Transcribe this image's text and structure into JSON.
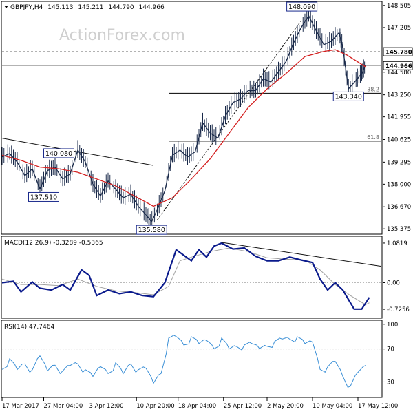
{
  "chart_data": {
    "type": "line",
    "symbol": "GBPJPY",
    "timeframe": "H4",
    "ohlc": {
      "open": "145.113",
      "high": "145.211",
      "low": "144.790",
      "close": "144.966"
    },
    "watermark": "ActionForex.com",
    "price_panel": {
      "ylim": [
        135.1,
        148.7
      ],
      "y_ticks": [
        "148.505",
        "147.205",
        "145.880",
        "144.580",
        "143.250",
        "141.955",
        "140.625",
        "139.295",
        "138.000",
        "136.670",
        "135.375"
      ],
      "price_labels": [
        {
          "text": "145.780",
          "value": 145.78
        },
        {
          "text": "144.966",
          "value": 144.966
        }
      ],
      "annotations": [
        {
          "text": "148.090",
          "value": 148.09,
          "x": 0.792
        },
        {
          "text": "140.080",
          "value": 140.08,
          "x": 0.15
        },
        {
          "text": "137.510",
          "value": 137.51,
          "x": 0.11
        },
        {
          "text": "135.580",
          "value": 135.58,
          "x": 0.395
        },
        {
          "text": "143.340",
          "value": 143.34,
          "x": 0.915
        }
      ],
      "fib_levels": [
        {
          "label": "38.2",
          "value": 143.34
        },
        {
          "label": "61.8",
          "value": 140.53
        }
      ],
      "dashed_level": 145.78,
      "last_price": 144.966,
      "price_series": [
        [
          0.0,
          139.6
        ],
        [
          0.02,
          139.8
        ],
        [
          0.04,
          139.3
        ],
        [
          0.06,
          138.5
        ],
        [
          0.08,
          138.9
        ],
        [
          0.1,
          137.7
        ],
        [
          0.12,
          138.8
        ],
        [
          0.14,
          139.0
        ],
        [
          0.16,
          138.3
        ],
        [
          0.18,
          138.6
        ],
        [
          0.2,
          140.0
        ],
        [
          0.22,
          139.3
        ],
        [
          0.24,
          138.0
        ],
        [
          0.26,
          137.3
        ],
        [
          0.28,
          138.2
        ],
        [
          0.3,
          137.7
        ],
        [
          0.32,
          137.2
        ],
        [
          0.34,
          137.4
        ],
        [
          0.36,
          136.7
        ],
        [
          0.38,
          136.2
        ],
        [
          0.395,
          135.8
        ],
        [
          0.41,
          136.5
        ],
        [
          0.43,
          137.6
        ],
        [
          0.45,
          139.7
        ],
        [
          0.47,
          140.0
        ],
        [
          0.49,
          139.6
        ],
        [
          0.51,
          139.9
        ],
        [
          0.53,
          141.6
        ],
        [
          0.55,
          141.0
        ],
        [
          0.57,
          140.7
        ],
        [
          0.59,
          142.0
        ],
        [
          0.61,
          142.8
        ],
        [
          0.63,
          143.0
        ],
        [
          0.65,
          143.5
        ],
        [
          0.67,
          143.5
        ],
        [
          0.69,
          144.2
        ],
        [
          0.71,
          144.0
        ],
        [
          0.73,
          144.6
        ],
        [
          0.75,
          145.2
        ],
        [
          0.77,
          146.3
        ],
        [
          0.79,
          147.2
        ],
        [
          0.81,
          147.9
        ],
        [
          0.83,
          147.0
        ],
        [
          0.85,
          146.2
        ],
        [
          0.87,
          146.4
        ],
        [
          0.89,
          146.9
        ],
        [
          0.9,
          146.0
        ],
        [
          0.915,
          143.6
        ],
        [
          0.935,
          144.1
        ],
        [
          0.95,
          144.5
        ],
        [
          0.96,
          144.97
        ]
      ],
      "ma_series": [
        [
          0.0,
          139.7
        ],
        [
          0.05,
          139.4
        ],
        [
          0.1,
          139.0
        ],
        [
          0.15,
          138.9
        ],
        [
          0.2,
          138.7
        ],
        [
          0.25,
          138.3
        ],
        [
          0.3,
          137.9
        ],
        [
          0.35,
          137.3
        ],
        [
          0.4,
          136.7
        ],
        [
          0.45,
          137.2
        ],
        [
          0.5,
          138.3
        ],
        [
          0.55,
          139.5
        ],
        [
          0.6,
          141.0
        ],
        [
          0.65,
          142.5
        ],
        [
          0.7,
          143.6
        ],
        [
          0.75,
          144.5
        ],
        [
          0.8,
          145.5
        ],
        [
          0.85,
          145.8
        ],
        [
          0.88,
          145.9
        ],
        [
          0.91,
          145.6
        ],
        [
          0.96,
          144.9
        ]
      ],
      "trendlines": [
        {
          "from": [
            0.0,
            140.7
          ],
          "to": [
            0.4,
            139.1
          ],
          "style": "solid"
        },
        {
          "from": [
            0.41,
            135.9
          ],
          "to": [
            0.79,
            147.6
          ],
          "style": "dashed"
        }
      ]
    },
    "macd_panel": {
      "label": "MACD(12,26,9) -0.3289 -0.5365",
      "ylim": [
        -0.95,
        1.25
      ],
      "y_ticks": [
        "1.0819",
        "0.00",
        "-0.7256"
      ],
      "macd_series": [
        [
          0.0,
          0.0
        ],
        [
          0.03,
          0.04
        ],
        [
          0.05,
          -0.25
        ],
        [
          0.08,
          0.02
        ],
        [
          0.1,
          -0.15
        ],
        [
          0.13,
          -0.2
        ],
        [
          0.16,
          -0.05
        ],
        [
          0.18,
          -0.2
        ],
        [
          0.21,
          0.35
        ],
        [
          0.23,
          0.2
        ],
        [
          0.25,
          -0.35
        ],
        [
          0.28,
          -0.2
        ],
        [
          0.31,
          -0.3
        ],
        [
          0.34,
          -0.25
        ],
        [
          0.37,
          -0.35
        ],
        [
          0.4,
          -0.38
        ],
        [
          0.43,
          0.0
        ],
        [
          0.46,
          0.9
        ],
        [
          0.48,
          0.75
        ],
        [
          0.5,
          0.6
        ],
        [
          0.52,
          0.9
        ],
        [
          0.54,
          0.7
        ],
        [
          0.56,
          1.0
        ],
        [
          0.58,
          1.08
        ],
        [
          0.61,
          0.92
        ],
        [
          0.64,
          0.95
        ],
        [
          0.67,
          0.72
        ],
        [
          0.7,
          0.6
        ],
        [
          0.73,
          0.6
        ],
        [
          0.76,
          0.7
        ],
        [
          0.79,
          0.62
        ],
        [
          0.82,
          0.55
        ],
        [
          0.84,
          0.1
        ],
        [
          0.86,
          -0.2
        ],
        [
          0.88,
          0.0
        ],
        [
          0.9,
          -0.2
        ],
        [
          0.93,
          -0.72
        ],
        [
          0.95,
          -0.72
        ],
        [
          0.97,
          -0.4
        ]
      ],
      "signal_series": [
        [
          0.0,
          0.1
        ],
        [
          0.05,
          -0.05
        ],
        [
          0.1,
          -0.05
        ],
        [
          0.15,
          -0.08
        ],
        [
          0.2,
          0.1
        ],
        [
          0.25,
          -0.1
        ],
        [
          0.3,
          -0.22
        ],
        [
          0.35,
          -0.27
        ],
        [
          0.4,
          -0.33
        ],
        [
          0.44,
          -0.1
        ],
        [
          0.47,
          0.6
        ],
        [
          0.5,
          0.7
        ],
        [
          0.55,
          0.85
        ],
        [
          0.6,
          0.95
        ],
        [
          0.65,
          0.85
        ],
        [
          0.7,
          0.68
        ],
        [
          0.75,
          0.64
        ],
        [
          0.8,
          0.62
        ],
        [
          0.84,
          0.35
        ],
        [
          0.88,
          -0.05
        ],
        [
          0.92,
          -0.35
        ],
        [
          0.96,
          -0.6
        ],
        [
          0.97,
          -0.55
        ]
      ],
      "trendline": {
        "from": [
          0.58,
          1.1
        ],
        "to": [
          1.0,
          0.45
        ]
      }
    },
    "rsi_panel": {
      "label": "RSI(14) 47.7464",
      "ylim": [
        12,
        104
      ],
      "y_ticks": [
        "100",
        "70",
        "30"
      ],
      "levels": [
        70,
        30
      ],
      "rsi_series": [
        [
          0.0,
          50
        ],
        [
          0.02,
          55
        ],
        [
          0.04,
          45
        ],
        [
          0.06,
          55
        ],
        [
          0.08,
          40
        ],
        [
          0.1,
          60
        ],
        [
          0.12,
          45
        ],
        [
          0.14,
          55
        ],
        [
          0.16,
          40
        ],
        [
          0.18,
          50
        ],
        [
          0.2,
          55
        ],
        [
          0.22,
          40
        ],
        [
          0.24,
          35
        ],
        [
          0.26,
          50
        ],
        [
          0.28,
          45
        ],
        [
          0.3,
          50
        ],
        [
          0.32,
          40
        ],
        [
          0.34,
          55
        ],
        [
          0.36,
          40
        ],
        [
          0.38,
          45
        ],
        [
          0.4,
          30
        ],
        [
          0.42,
          45
        ],
        [
          0.44,
          80
        ],
        [
          0.46,
          85
        ],
        [
          0.48,
          78
        ],
        [
          0.5,
          80
        ],
        [
          0.52,
          75
        ],
        [
          0.54,
          82
        ],
        [
          0.56,
          75
        ],
        [
          0.58,
          80
        ],
        [
          0.6,
          70
        ],
        [
          0.62,
          76
        ],
        [
          0.64,
          70
        ],
        [
          0.66,
          75
        ],
        [
          0.68,
          72
        ],
        [
          0.7,
          78
        ],
        [
          0.72,
          76
        ],
        [
          0.74,
          82
        ],
        [
          0.76,
          85
        ],
        [
          0.78,
          80
        ],
        [
          0.8,
          75
        ],
        [
          0.82,
          80
        ],
        [
          0.84,
          50
        ],
        [
          0.86,
          45
        ],
        [
          0.88,
          55
        ],
        [
          0.9,
          40
        ],
        [
          0.92,
          20
        ],
        [
          0.94,
          40
        ],
        [
          0.96,
          50
        ]
      ]
    },
    "x_ticks": [
      {
        "label": "17 Mar 2017",
        "x": 0.0
      },
      {
        "label": "27 Mar 04:00",
        "x": 0.11
      },
      {
        "label": "3 Apr 12:00",
        "x": 0.23
      },
      {
        "label": "10 Apr 20:00",
        "x": 0.355
      },
      {
        "label": "18 Apr 04:00",
        "x": 0.465
      },
      {
        "label": "25 Apr 12:00",
        "x": 0.585
      },
      {
        "label": "2 May 20:00",
        "x": 0.7
      },
      {
        "label": "10 May 04:00",
        "x": 0.82
      },
      {
        "label": "17 May 12:00",
        "x": 0.94
      }
    ],
    "colors": {
      "price": "#1a2a4a",
      "ma": "#d42020",
      "macd": "#0a1a8c",
      "signal": "#a0a0a0",
      "rsi": "#3a8fd6",
      "grid": "#e6e6e6",
      "axis": "#000000",
      "label_border": "#1a2a8c"
    }
  }
}
